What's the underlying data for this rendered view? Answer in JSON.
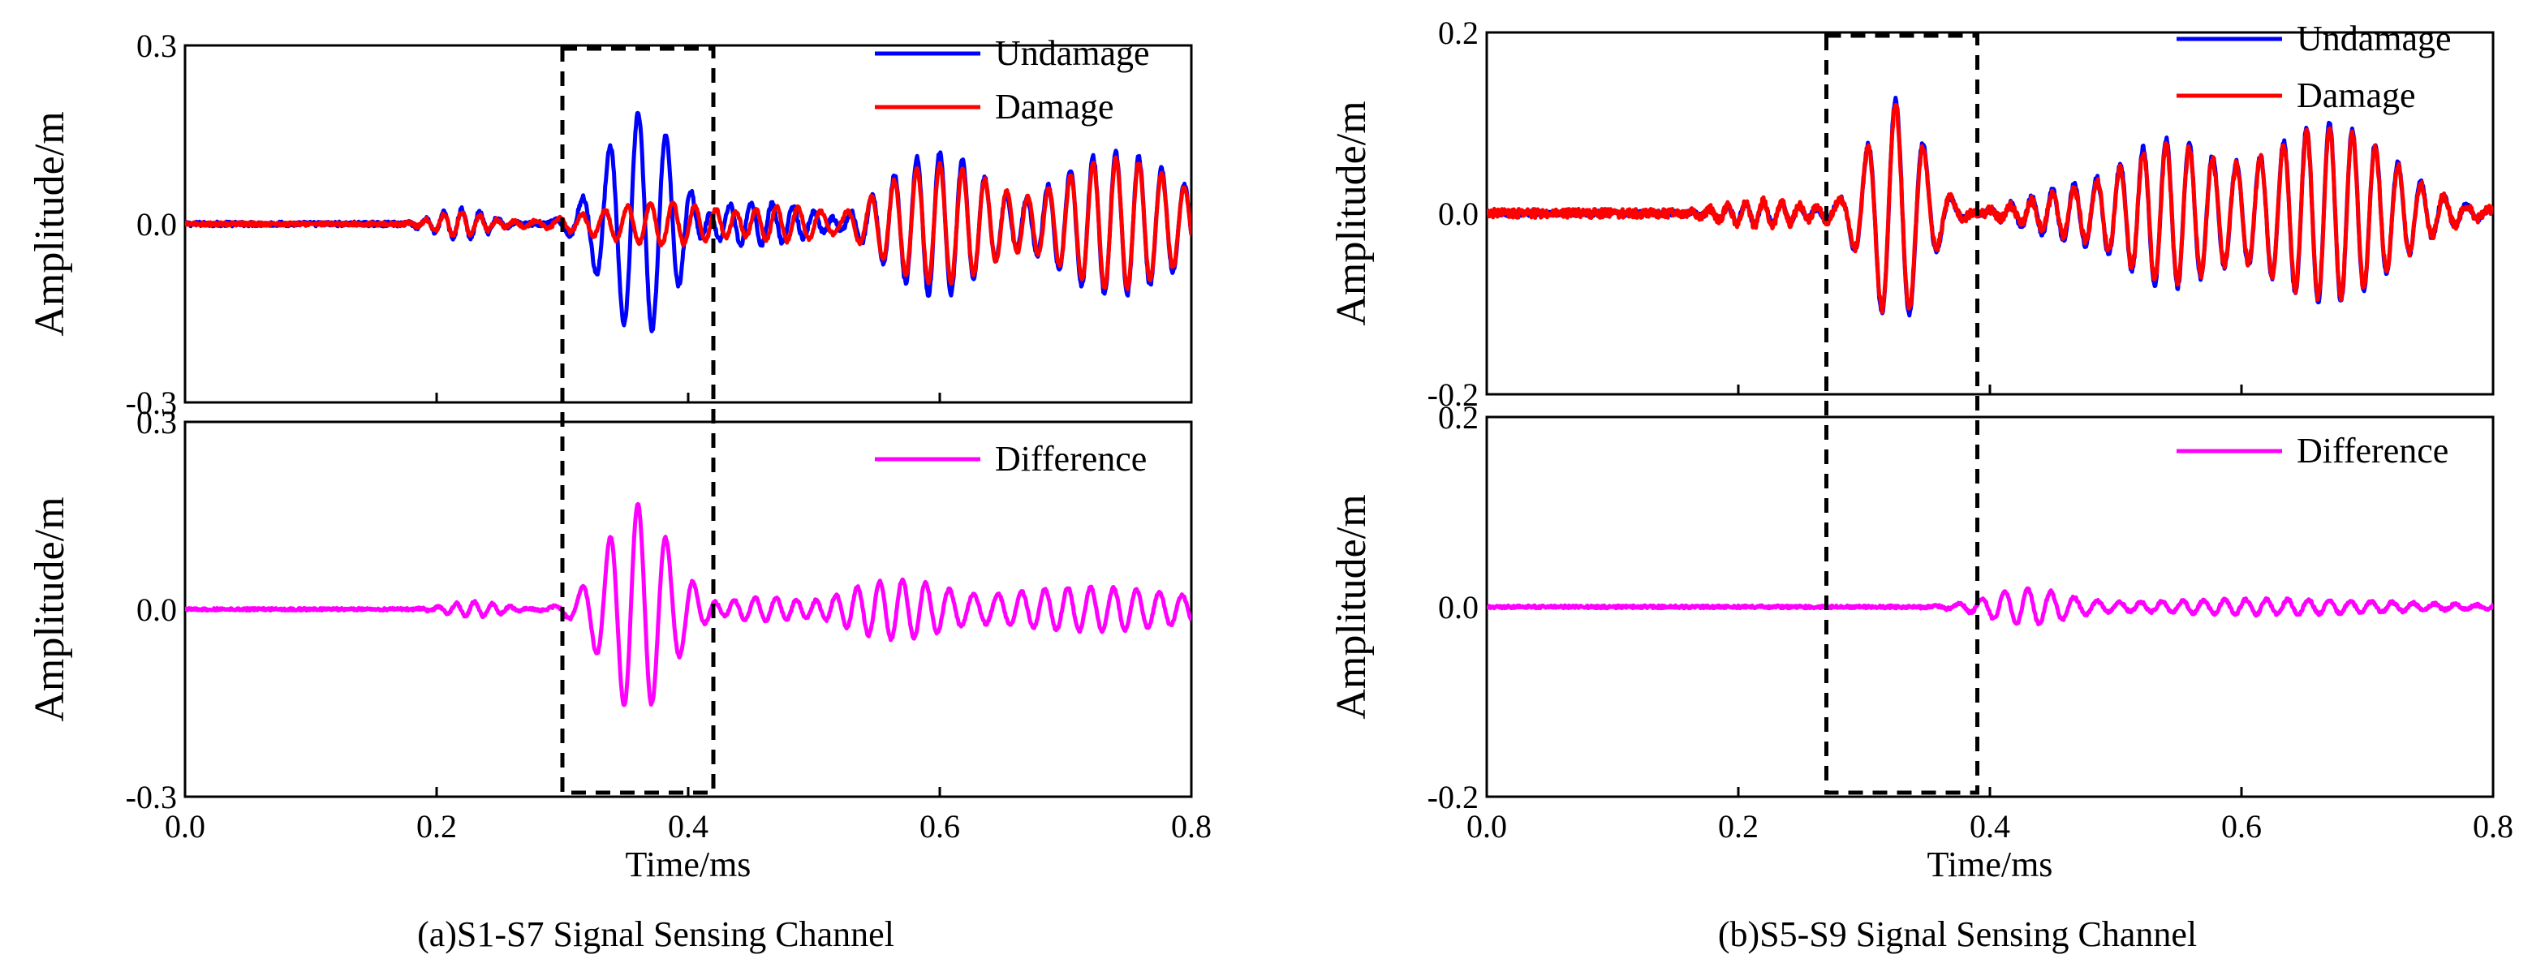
{
  "chart_data": [
    {
      "type": "line",
      "caption": "(a)S1-S7 Signal Sensing Channel",
      "xlabel": "Time/ms",
      "xlim": [
        0.0,
        0.8
      ],
      "x_ticks": [
        "0.0",
        "0.2",
        "0.4",
        "0.6",
        "0.8"
      ],
      "top": {
        "ylabel": "Amplitude/m",
        "ylim": [
          -0.3,
          0.3
        ],
        "y_ticks": [
          "0.3",
          "0.0",
          "-0.3"
        ],
        "series": [
          {
            "name": "Undamage",
            "color": "#0000ff",
            "wave": {
              "noise": 0.004,
              "components": [
                {
                  "t0": 0.22,
                  "amp": 0.025,
                  "sigma": 0.02,
                  "freq": 70
                },
                {
                  "t0": 0.36,
                  "amp": 0.195,
                  "sigma": 0.025,
                  "freq": 45
                },
                {
                  "t0": 0.45,
                  "amp": 0.035,
                  "sigma": 0.06,
                  "freq": 60
                },
                {
                  "t0": 0.6,
                  "amp": 0.12,
                  "sigma": 0.04,
                  "freq": 55
                },
                {
                  "t0": 0.74,
                  "amp": 0.12,
                  "sigma": 0.05,
                  "freq": 55
                }
              ]
            }
          },
          {
            "name": "Damage",
            "color": "#ff0000",
            "wave": {
              "noise": 0.003,
              "components": [
                {
                  "t0": 0.22,
                  "amp": 0.02,
                  "sigma": 0.02,
                  "freq": 70
                },
                {
                  "t0": 0.37,
                  "amp": 0.03,
                  "sigma": 0.05,
                  "freq": 55
                },
                {
                  "t0": 0.47,
                  "amp": 0.03,
                  "sigma": 0.05,
                  "freq": 60
                },
                {
                  "t0": 0.6,
                  "amp": 0.1,
                  "sigma": 0.05,
                  "freq": 55
                },
                {
                  "t0": 0.74,
                  "amp": 0.11,
                  "sigma": 0.05,
                  "freq": 55
                }
              ]
            }
          }
        ]
      },
      "bottom": {
        "ylabel": "Amplitude/m",
        "ylim": [
          -0.3,
          0.3
        ],
        "y_ticks": [
          "0.3",
          "0.0",
          "-0.3"
        ],
        "series": [
          {
            "name": "Difference",
            "color": "#ff00ff",
            "wave": {
              "noise": 0.002,
              "components": [
                {
                  "t0": 0.23,
                  "amp": 0.012,
                  "sigma": 0.02,
                  "freq": 70
                },
                {
                  "t0": 0.36,
                  "amp": 0.17,
                  "sigma": 0.025,
                  "freq": 45
                },
                {
                  "t0": 0.47,
                  "amp": 0.02,
                  "sigma": 0.05,
                  "freq": 60
                },
                {
                  "t0": 0.57,
                  "amp": 0.045,
                  "sigma": 0.04,
                  "freq": 55
                },
                {
                  "t0": 0.72,
                  "amp": 0.035,
                  "sigma": 0.08,
                  "freq": 55
                }
              ]
            }
          }
        ]
      },
      "highlight_box": {
        "x": [
          0.3,
          0.42
        ]
      }
    },
    {
      "type": "line",
      "caption": "(b)S5-S9 Signal Sensing Channel",
      "xlabel": "Time/ms",
      "xlim": [
        0.0,
        0.8
      ],
      "x_ticks": [
        "0.0",
        "0.2",
        "0.4",
        "0.6",
        "0.8"
      ],
      "top": {
        "ylabel": "Amplitude/m",
        "ylim": [
          -0.2,
          0.2
        ],
        "y_ticks": [
          "0.2",
          "0.0",
          "-0.2"
        ],
        "series": [
          {
            "name": "Undamage",
            "color": "#0000ff",
            "wave": {
              "noise": 0.003,
              "components": [
                {
                  "t0": 0.22,
                  "amp": 0.012,
                  "sigma": 0.03,
                  "freq": 70
                },
                {
                  "t0": 0.325,
                  "amp": 0.125,
                  "sigma": 0.022,
                  "freq": 45
                },
                {
                  "t0": 0.45,
                  "amp": 0.02,
                  "sigma": 0.03,
                  "freq": 60
                },
                {
                  "t0": 0.54,
                  "amp": 0.08,
                  "sigma": 0.04,
                  "freq": 55
                },
                {
                  "t0": 0.67,
                  "amp": 0.1,
                  "sigma": 0.05,
                  "freq": 55
                }
              ]
            }
          },
          {
            "name": "Damage",
            "color": "#ff0000",
            "wave": {
              "noise": 0.005,
              "components": [
                {
                  "t0": 0.22,
                  "amp": 0.014,
                  "sigma": 0.03,
                  "freq": 70
                },
                {
                  "t0": 0.325,
                  "amp": 0.12,
                  "sigma": 0.022,
                  "freq": 45
                },
                {
                  "t0": 0.45,
                  "amp": 0.015,
                  "sigma": 0.03,
                  "freq": 60
                },
                {
                  "t0": 0.54,
                  "amp": 0.075,
                  "sigma": 0.04,
                  "freq": 55
                },
                {
                  "t0": 0.67,
                  "amp": 0.095,
                  "sigma": 0.05,
                  "freq": 55
                }
              ]
            }
          }
        ]
      },
      "bottom": {
        "ylabel": "Amplitude/m",
        "ylim": [
          -0.2,
          0.2
        ],
        "y_ticks": [
          "0.2",
          "0.0",
          "-0.2"
        ],
        "series": [
          {
            "name": "Difference",
            "color": "#ff00ff",
            "wave": {
              "noise": 0.0015,
              "components": [
                {
                  "t0": 0.43,
                  "amp": 0.02,
                  "sigma": 0.03,
                  "freq": 55
                },
                {
                  "t0": 0.62,
                  "amp": 0.008,
                  "sigma": 0.1,
                  "freq": 60
                }
              ]
            }
          }
        ]
      },
      "highlight_box": {
        "x": [
          0.27,
          0.39
        ]
      }
    }
  ]
}
